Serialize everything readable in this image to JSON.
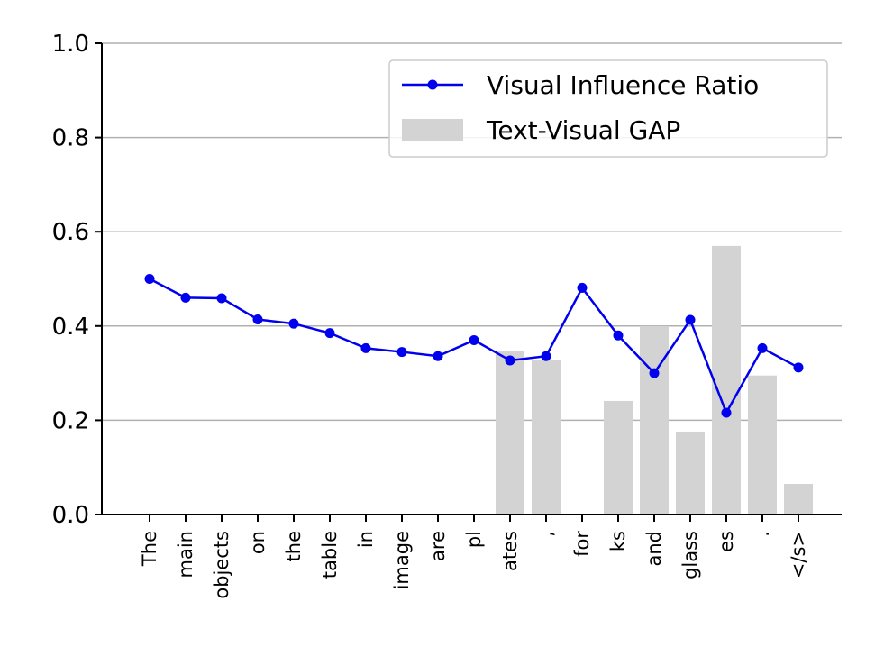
{
  "chart_data": {
    "type": "line",
    "categories": [
      "The",
      "main",
      "objects",
      "on",
      "the",
      "table",
      "in",
      "image",
      "are",
      "pl",
      "ates",
      ",",
      "for",
      "ks",
      "and",
      "glass",
      "es",
      ".",
      "</s>"
    ],
    "series": [
      {
        "name": "Visual Influence Ratio",
        "kind": "line",
        "color": "#0000ee",
        "values": [
          0.5,
          0.46,
          0.459,
          0.414,
          0.405,
          0.385,
          0.353,
          0.345,
          0.336,
          0.37,
          0.327,
          0.336,
          0.481,
          0.38,
          0.3,
          0.413,
          0.216,
          0.353,
          0.312
        ]
      },
      {
        "name": "Text-Visual GAP",
        "kind": "bar",
        "color": "#d3d3d3",
        "values": [
          null,
          null,
          null,
          null,
          null,
          null,
          null,
          null,
          null,
          null,
          0.347,
          0.327,
          null,
          0.241,
          0.4,
          0.176,
          0.57,
          0.295,
          0.065
        ]
      }
    ],
    "ylim": [
      0,
      1.0
    ],
    "yticks": [
      "0.0",
      "0.2",
      "0.4",
      "0.6",
      "0.8",
      "1.0"
    ],
    "grid": "horizontal",
    "legend_position": "top-right",
    "title": "",
    "xlabel": "",
    "ylabel": ""
  }
}
